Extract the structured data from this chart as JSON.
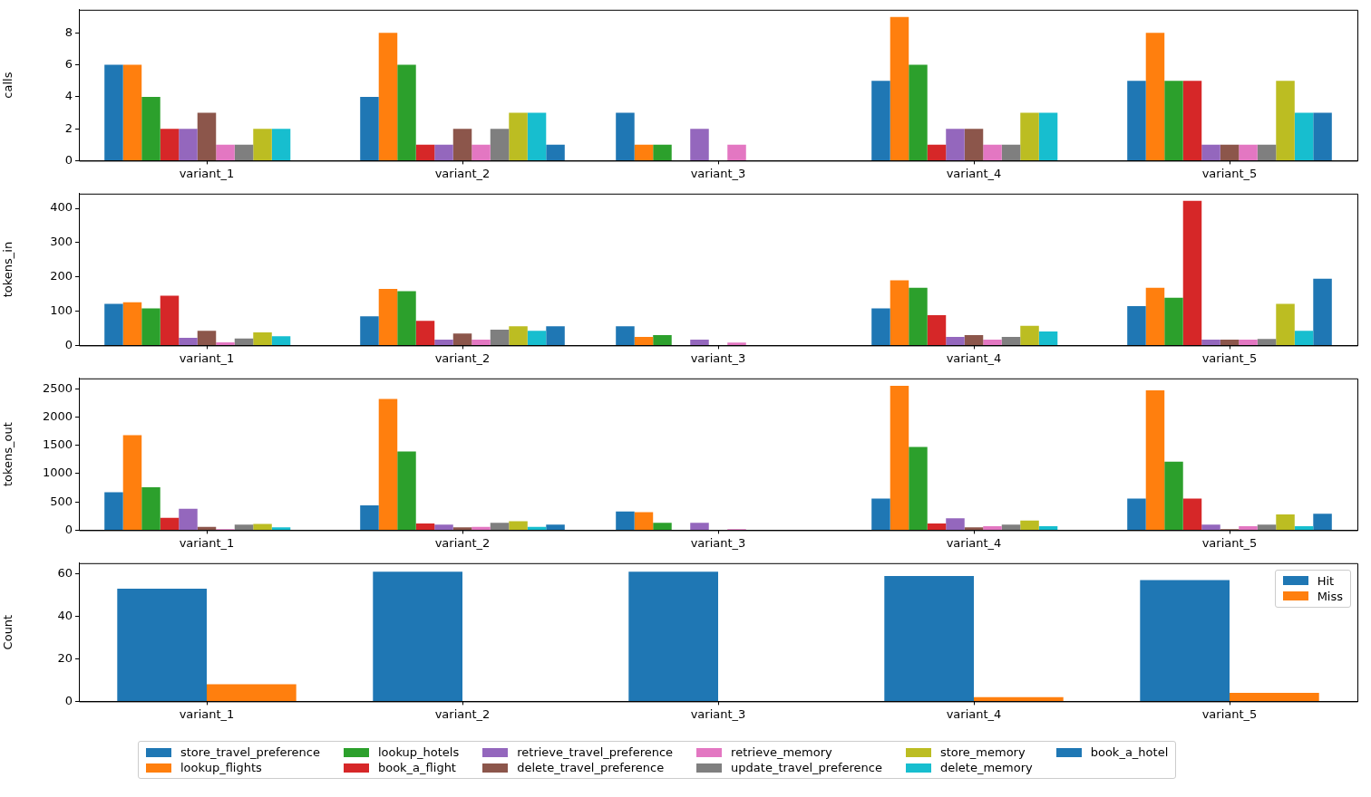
{
  "chart_data": [
    {
      "type": "bar",
      "ylabel": "calls",
      "categories": [
        "variant_1",
        "variant_2",
        "variant_3",
        "variant_4",
        "variant_5"
      ],
      "ylim": [
        0,
        9.45
      ],
      "yticks": [
        0,
        2,
        4,
        6,
        8
      ],
      "legend": "bottom",
      "series": [
        {
          "name": "store_travel_preference",
          "color": "#1f77b4",
          "values": [
            6,
            4,
            3,
            5,
            5
          ]
        },
        {
          "name": "lookup_flights",
          "color": "#ff7f0e",
          "values": [
            6,
            8,
            1,
            9,
            8
          ]
        },
        {
          "name": "lookup_hotels",
          "color": "#2ca02c",
          "values": [
            4,
            6,
            1,
            6,
            5
          ]
        },
        {
          "name": "book_a_flight",
          "color": "#d62728",
          "values": [
            2,
            1,
            null,
            1,
            5
          ]
        },
        {
          "name": "retrieve_travel_preference",
          "color": "#9467bd",
          "values": [
            2,
            1,
            2,
            2,
            1
          ]
        },
        {
          "name": "delete_travel_preference",
          "color": "#8c564b",
          "values": [
            3,
            2,
            null,
            2,
            1
          ]
        },
        {
          "name": "retrieve_memory",
          "color": "#e377c2",
          "values": [
            1,
            1,
            1,
            1,
            1
          ]
        },
        {
          "name": "update_travel_preference",
          "color": "#7f7f7f",
          "values": [
            1,
            2,
            null,
            1,
            1
          ]
        },
        {
          "name": "store_memory",
          "color": "#bcbd22",
          "values": [
            2,
            3,
            null,
            3,
            5
          ]
        },
        {
          "name": "delete_memory",
          "color": "#17becf",
          "values": [
            2,
            3,
            null,
            3,
            3
          ]
        },
        {
          "name": "book_a_hotel",
          "color": "#1f77b4",
          "values": [
            null,
            1,
            null,
            null,
            3
          ]
        }
      ]
    },
    {
      "type": "bar",
      "ylabel": "tokens_in",
      "categories": [
        "variant_1",
        "variant_2",
        "variant_3",
        "variant_4",
        "variant_5"
      ],
      "ylim": [
        0,
        443
      ],
      "yticks": [
        0,
        100,
        200,
        300,
        400
      ],
      "legend": "bottom",
      "series": [
        {
          "name": "store_travel_preference",
          "color": "#1f77b4",
          "values": [
            121,
            85,
            56,
            108,
            115
          ]
        },
        {
          "name": "lookup_flights",
          "color": "#ff7f0e",
          "values": [
            126,
            165,
            25,
            190,
            168
          ]
        },
        {
          "name": "lookup_hotels",
          "color": "#2ca02c",
          "values": [
            108,
            158,
            30,
            168,
            139
          ]
        },
        {
          "name": "book_a_flight",
          "color": "#d62728",
          "values": [
            145,
            72,
            null,
            88,
            422
          ]
        },
        {
          "name": "retrieve_travel_preference",
          "color": "#9467bd",
          "values": [
            22,
            17,
            17,
            25,
            17
          ]
        },
        {
          "name": "delete_travel_preference",
          "color": "#8c564b",
          "values": [
            43,
            35,
            null,
            30,
            17
          ]
        },
        {
          "name": "retrieve_memory",
          "color": "#e377c2",
          "values": [
            9,
            17,
            8,
            17,
            17
          ]
        },
        {
          "name": "update_travel_preference",
          "color": "#7f7f7f",
          "values": [
            20,
            46,
            null,
            25,
            19
          ]
        },
        {
          "name": "store_memory",
          "color": "#bcbd22",
          "values": [
            38,
            56,
            null,
            57,
            121
          ]
        },
        {
          "name": "delete_memory",
          "color": "#17becf",
          "values": [
            27,
            43,
            null,
            41,
            43
          ]
        },
        {
          "name": "book_a_hotel",
          "color": "#1f77b4",
          "values": [
            null,
            56,
            null,
            null,
            195
          ]
        }
      ]
    },
    {
      "type": "bar",
      "ylabel": "tokens_out",
      "categories": [
        "variant_1",
        "variant_2",
        "variant_3",
        "variant_4",
        "variant_5"
      ],
      "ylim": [
        0,
        2683
      ],
      "yticks": [
        0,
        500,
        1000,
        1500,
        2000,
        2500
      ],
      "legend": "bottom",
      "series": [
        {
          "name": "store_travel_preference",
          "color": "#1f77b4",
          "values": [
            670,
            440,
            330,
            560,
            560
          ]
        },
        {
          "name": "lookup_flights",
          "color": "#ff7f0e",
          "values": [
            1680,
            2320,
            320,
            2550,
            2470
          ]
        },
        {
          "name": "lookup_hotels",
          "color": "#2ca02c",
          "values": [
            760,
            1390,
            130,
            1470,
            1210
          ]
        },
        {
          "name": "book_a_flight",
          "color": "#d62728",
          "values": [
            220,
            120,
            null,
            120,
            560
          ]
        },
        {
          "name": "retrieve_travel_preference",
          "color": "#9467bd",
          "values": [
            380,
            100,
            130,
            210,
            100
          ]
        },
        {
          "name": "delete_travel_preference",
          "color": "#8c564b",
          "values": [
            60,
            50,
            null,
            50,
            20
          ]
        },
        {
          "name": "retrieve_memory",
          "color": "#e377c2",
          "values": [
            20,
            60,
            20,
            70,
            70
          ]
        },
        {
          "name": "update_travel_preference",
          "color": "#7f7f7f",
          "values": [
            100,
            130,
            null,
            100,
            100
          ]
        },
        {
          "name": "store_memory",
          "color": "#bcbd22",
          "values": [
            110,
            160,
            null,
            170,
            280
          ]
        },
        {
          "name": "delete_memory",
          "color": "#17becf",
          "values": [
            50,
            60,
            null,
            70,
            70
          ]
        },
        {
          "name": "book_a_hotel",
          "color": "#1f77b4",
          "values": [
            null,
            100,
            null,
            null,
            290
          ]
        }
      ]
    },
    {
      "type": "bar",
      "ylabel": "Count",
      "categories": [
        "variant_1",
        "variant_2",
        "variant_3",
        "variant_4",
        "variant_5"
      ],
      "ylim": [
        0,
        65
      ],
      "yticks": [
        0,
        20,
        40,
        60
      ],
      "legend": "top right",
      "series": [
        {
          "name": "Hit",
          "color": "#1f77b4",
          "values": [
            53,
            61,
            61,
            59,
            57
          ]
        },
        {
          "name": "Miss",
          "color": "#ff7f0e",
          "values": [
            8,
            0,
            0,
            2,
            4
          ]
        }
      ]
    }
  ]
}
